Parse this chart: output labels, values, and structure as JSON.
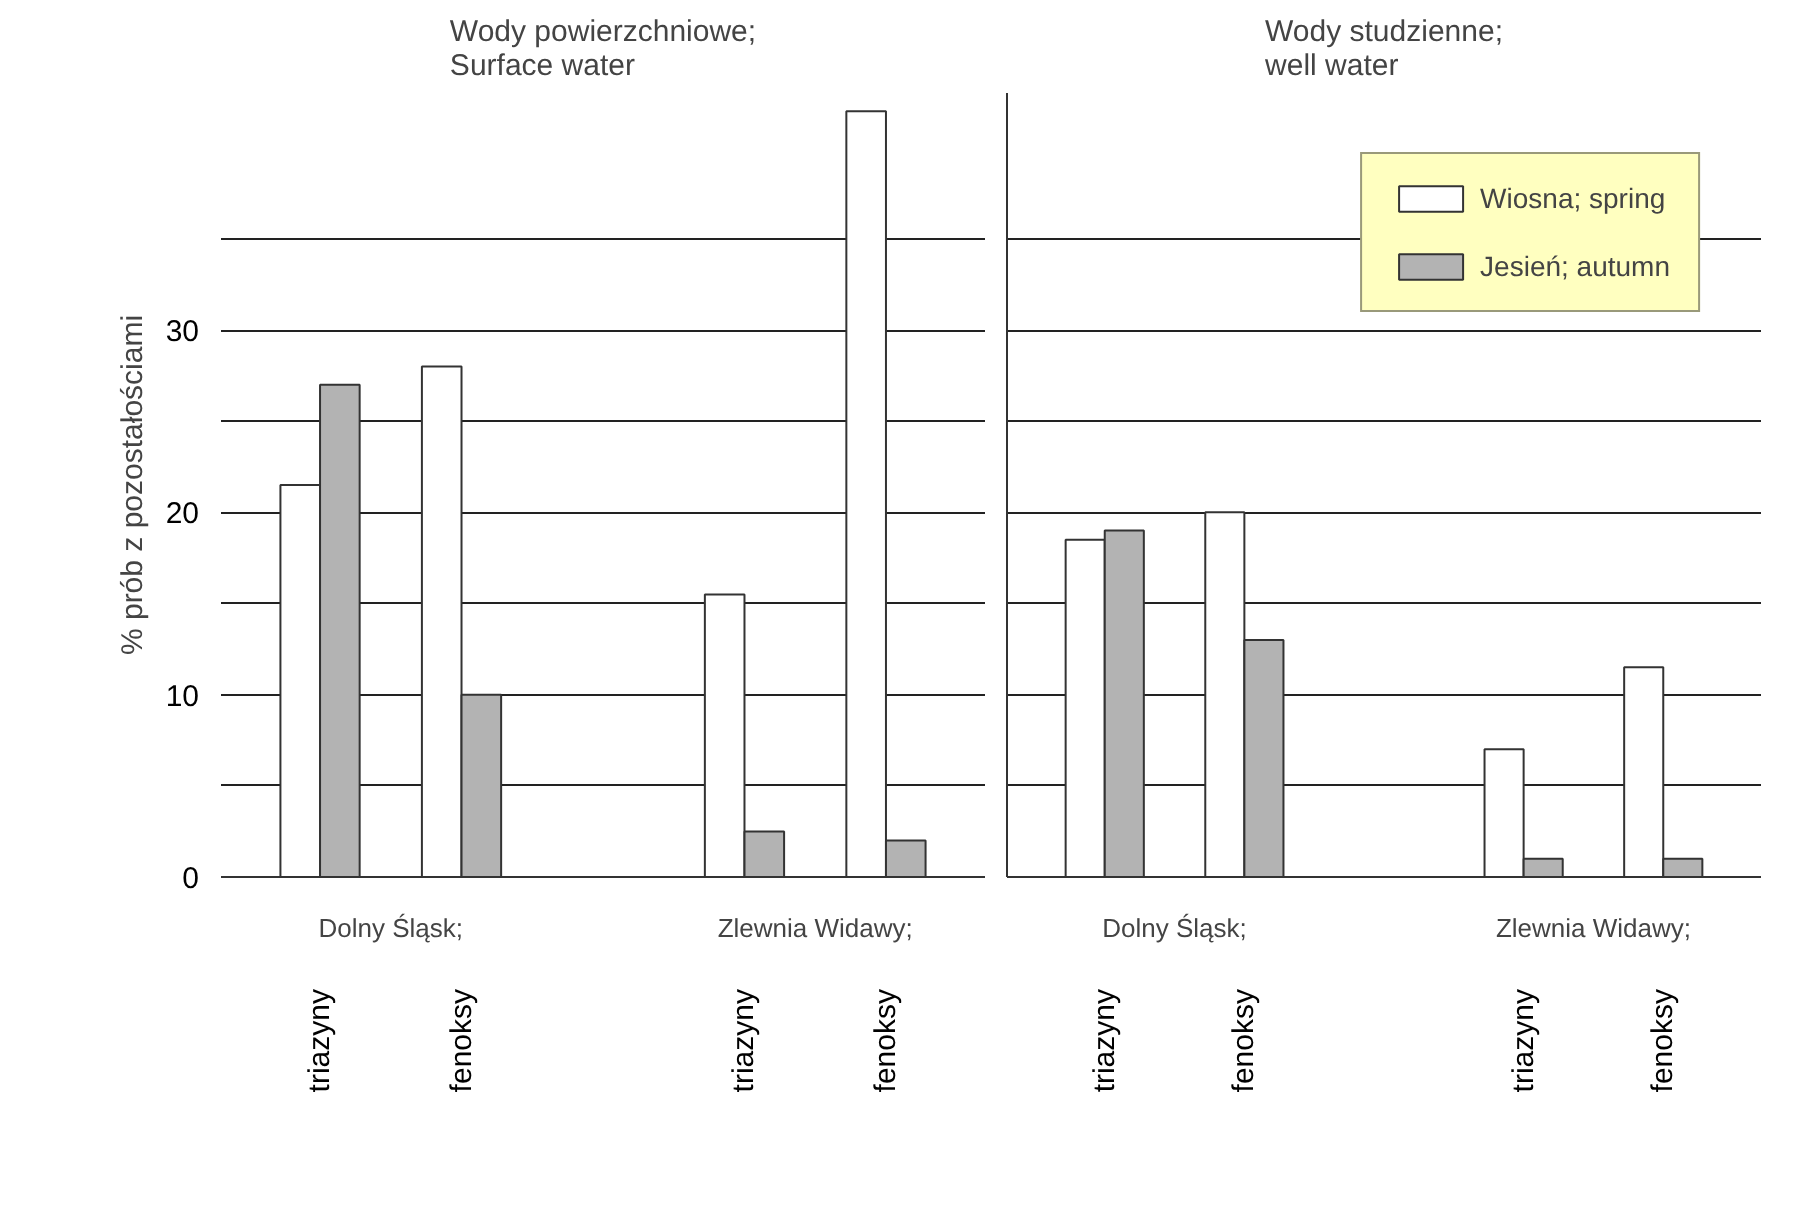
{
  "chart_data": [
    {
      "type": "bar",
      "title": "Wody powierzchniowe;\nSurface water",
      "ylabel": "% prób z pozostałościami",
      "categories": [
        "triazyny",
        "fenoksy",
        "triazyny",
        "fenoksy"
      ],
      "series": [
        {
          "color": "#ffffff",
          "values": [
            21.5,
            28.0,
            15.5,
            42.0
          ]
        },
        {
          "color": "#b3b3b3",
          "values": [
            27.0,
            10.0,
            2.5,
            2.0
          ]
        }
      ],
      "annotations": [
        "Dolny Śląsk;",
        "Zlewnia Widawy;"
      ],
      "ylim": [
        0,
        43
      ],
      "yticks": [
        0,
        {
          "value": 5,
          "label": null
        },
        10,
        {
          "value": 15,
          "label": null
        },
        20,
        {
          "value": 25,
          "label": null
        },
        30,
        {
          "value": 35,
          "label": null
        }
      ],
      "grid": "y"
    },
    {
      "type": "bar",
      "title": "Wody studzienne;\nwell water",
      "categories": [
        "triazyny",
        "fenoksy",
        "triazyny",
        "fenoksy"
      ],
      "series": [
        {
          "name": "Wiosna; spring",
          "color": "#ffffff",
          "values": [
            18.5,
            20.0,
            7.0,
            11.5
          ]
        },
        {
          "name": "Jesień; autumn",
          "color": "#b3b3b3",
          "values": [
            19.0,
            13.0,
            1.0,
            1.0
          ]
        }
      ],
      "annotations": [
        "Dolny Śląsk;",
        "Zlewnia Widawy;"
      ],
      "ylim": [
        0,
        43
      ],
      "yticks": [
        0,
        {
          "value": 5,
          "label": null
        },
        10,
        {
          "value": 15,
          "label": null
        },
        20,
        {
          "value": 25,
          "label": null
        },
        30,
        {
          "value": 35,
          "label": null
        }
      ],
      "grid": "y",
      "legend": "top right",
      "tick_labels": "x"
    }
  ]
}
